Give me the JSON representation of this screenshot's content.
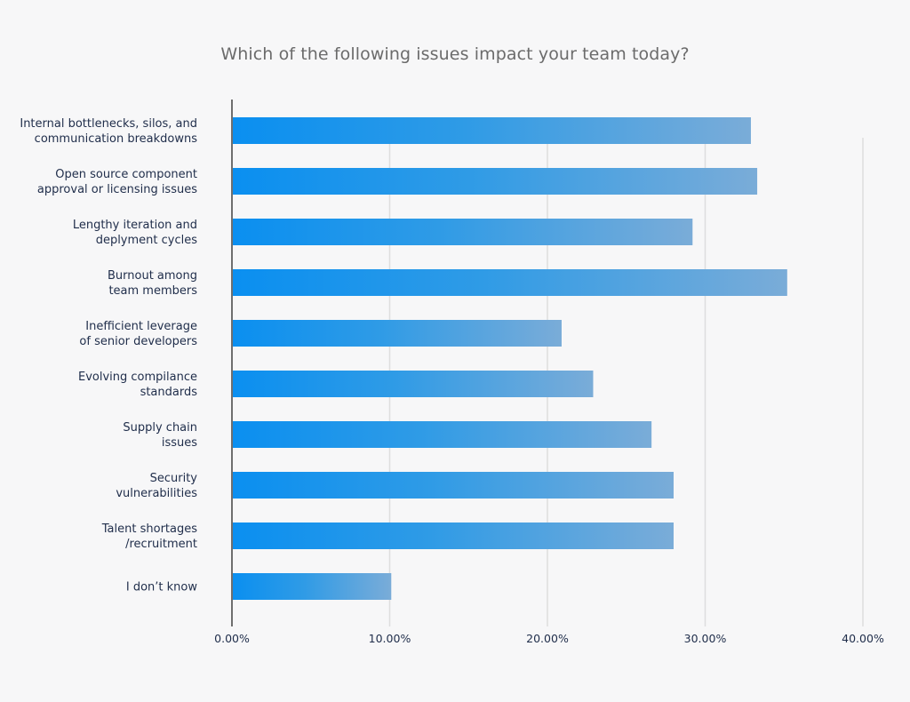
{
  "chart_data": {
    "type": "bar",
    "orientation": "horizontal",
    "title": "Which of the following issues impact your team today?",
    "xlabel": "",
    "ylabel": "",
    "categories": [
      [
        "Internal bottlenecks, silos, and",
        "communication breakdowns"
      ],
      [
        "Open source component",
        "approval or licensing issues"
      ],
      [
        "Lengthy iteration and",
        "deplyment cycles"
      ],
      [
        "Burnout among",
        "team members"
      ],
      [
        "Inefficient leverage",
        "of senior developers"
      ],
      [
        "Evolving compilance",
        "standards"
      ],
      [
        "Supply chain",
        "issues"
      ],
      [
        "Security",
        "vulnerabilities"
      ],
      [
        "Talent shortages",
        "/recruitment"
      ],
      [
        "I don’t know"
      ]
    ],
    "values": [
      32.9,
      33.3,
      29.2,
      35.2,
      20.9,
      22.9,
      26.6,
      28.0,
      28.0,
      10.1
    ],
    "xlim": [
      0,
      40
    ],
    "xticks": [
      "0.00%",
      "10.00%",
      "20.00%",
      "30.00%",
      "40.00%"
    ],
    "grid": true,
    "legend": "none",
    "colors": {
      "bar_start": "#0a8ff0",
      "bar_end": "#7aacd8",
      "axis": "#6e6e6e",
      "grid": "#dedede",
      "text": "#1f2d4a",
      "title": "#6b6b6b"
    }
  }
}
